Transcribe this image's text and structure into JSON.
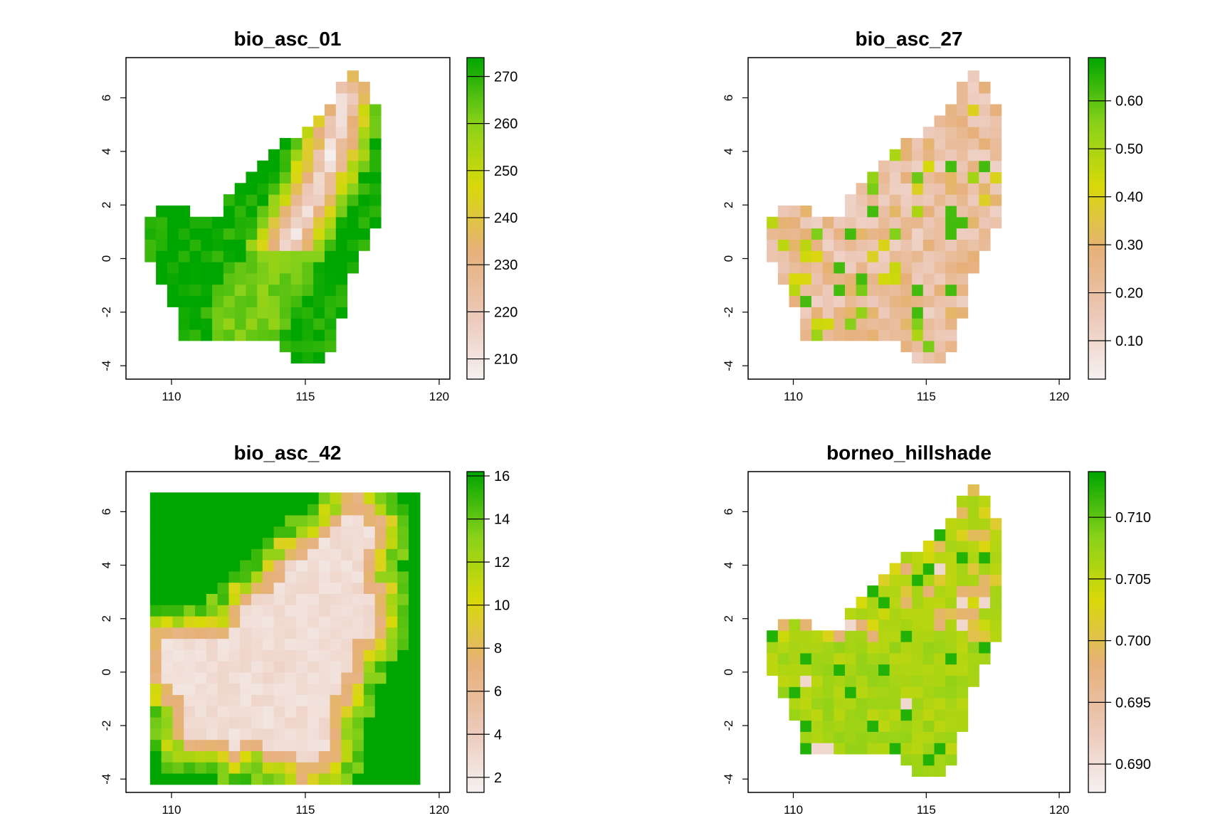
{
  "chart_data": [
    {
      "type": "heatmap",
      "title": "bio_asc_01",
      "xlim": [
        108.3,
        120.4
      ],
      "ylim": [
        -4.5,
        7.5
      ],
      "xticks": [
        110,
        115,
        120
      ],
      "yticks": [
        -4,
        -2,
        0,
        2,
        4,
        6
      ],
      "legend": {
        "min": 205.7,
        "max": 274,
        "ticks": [
          210,
          220,
          230,
          240,
          250,
          260,
          270
        ]
      },
      "colorscale": [
        "#f5f1f1",
        "#ecc8b8",
        "#e6b07a",
        "#d9d90a",
        "#88d11a",
        "#00a600"
      ],
      "grid": {
        "x0": 109.6,
        "y0": -3.8,
        "dx": 0.42,
        "dy": 0.42,
        "field": "A"
      }
    },
    {
      "type": "heatmap",
      "title": "bio_asc_27",
      "xlim": [
        108.3,
        120.4
      ],
      "ylim": [
        -4.5,
        7.5
      ],
      "xticks": [
        110,
        115,
        120
      ],
      "yticks": [
        -4,
        -2,
        0,
        2,
        4,
        6
      ],
      "legend": {
        "min": 0.02,
        "max": 0.69,
        "ticks": [
          0.1,
          0.2,
          0.3,
          0.4,
          0.5,
          0.6
        ],
        "tick_labels": [
          "0.10",
          "0.20",
          "0.30",
          "0.40",
          "0.50",
          "0.60"
        ]
      },
      "colorscale": [
        "#f5f1f1",
        "#ecc8b8",
        "#e6b07a",
        "#d9d90a",
        "#88d11a",
        "#00a600"
      ],
      "grid": {
        "x0": 109.6,
        "y0": -3.8,
        "dx": 0.42,
        "dy": 0.42,
        "field": "B"
      }
    },
    {
      "type": "heatmap",
      "title": "bio_asc_42",
      "xlim": [
        108.3,
        120.4
      ],
      "ylim": [
        -4.5,
        7.5
      ],
      "xticks": [
        110,
        115,
        120
      ],
      "yticks": [
        -4,
        -2,
        0,
        2,
        4,
        6
      ],
      "legend": {
        "min": 1.3,
        "max": 16.2,
        "ticks": [
          2,
          4,
          6,
          8,
          10,
          12,
          14,
          16
        ]
      },
      "colorscale": [
        "#f5f1f1",
        "#ecc8b8",
        "#e6b07a",
        "#d9d90a",
        "#88d11a",
        "#00a600"
      ],
      "grid": {
        "x0": 109.2,
        "y0": -4.2,
        "dx": 0.42,
        "dy": 0.42,
        "field": "C",
        "extent": [
          109.2,
          119.2,
          -4.2,
          6.65
        ]
      }
    },
    {
      "type": "heatmap",
      "title": "borneo_hillshade",
      "xlim": [
        108.3,
        120.4
      ],
      "ylim": [
        -4.5,
        7.5
      ],
      "xticks": [
        110,
        115,
        120
      ],
      "yticks": [
        -4,
        -2,
        0,
        2,
        4,
        6
      ],
      "legend": {
        "min": 0.6877,
        "max": 0.7137,
        "ticks": [
          0.69,
          0.695,
          0.7,
          0.705,
          0.71
        ],
        "tick_labels": [
          "0.690",
          "0.695",
          "0.700",
          "0.705",
          "0.710"
        ]
      },
      "colorscale": [
        "#f5f1f1",
        "#ecc8b8",
        "#e6b07a",
        "#d9d90a",
        "#88d11a",
        "#00a600"
      ],
      "grid": {
        "x0": 109.6,
        "y0": -3.8,
        "dx": 0.42,
        "dy": 0.42,
        "field": "D"
      }
    }
  ]
}
